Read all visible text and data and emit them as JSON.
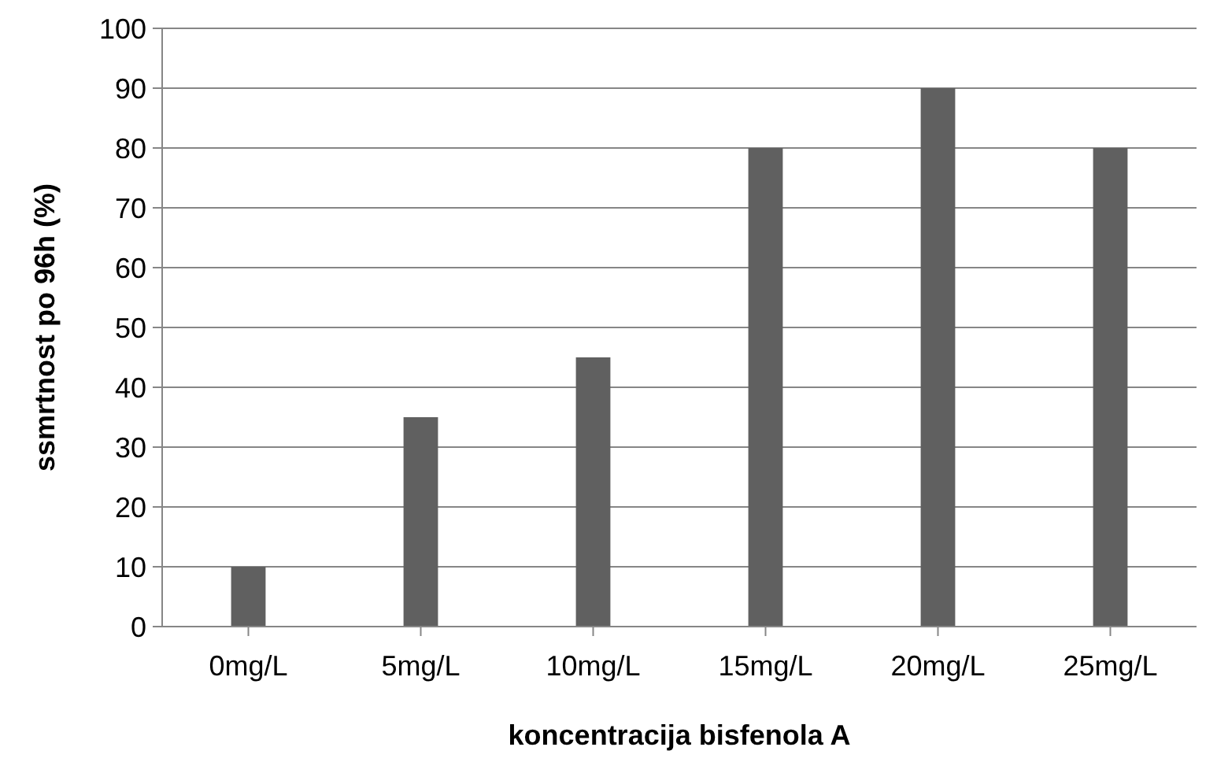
{
  "chart_data": {
    "type": "bar",
    "xlabel": "koncentracija bisfenola A",
    "ylabel": "ssmrtnost po 96h  (%)",
    "categories": [
      "0mg/L",
      "5mg/L",
      "10mg/L",
      "15mg/L",
      "20mg/L",
      "25mg/L"
    ],
    "values": [
      10,
      35,
      45,
      80,
      90,
      80
    ],
    "color": "#606060",
    "ylim": [
      0,
      100
    ],
    "yticks": [
      0,
      10,
      20,
      30,
      40,
      50,
      60,
      70,
      80,
      90,
      100
    ],
    "grid": "y",
    "legend": false
  }
}
